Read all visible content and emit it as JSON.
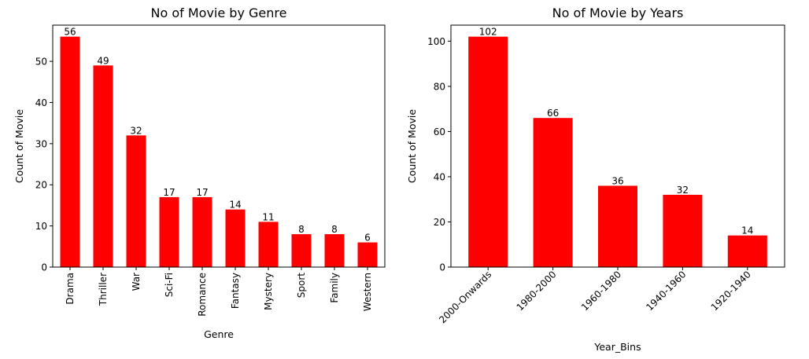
{
  "chart_data": [
    {
      "type": "bar",
      "title": "No of Movie by Genre",
      "xlabel": "Genre",
      "ylabel": "Count of Movie",
      "categories": [
        "Drama",
        "Thriller",
        "War",
        "Sci-Fi",
        "Romance",
        "Fantasy",
        "Mystery",
        "Sport",
        "Family",
        "Western"
      ],
      "values": [
        56,
        49,
        32,
        17,
        17,
        14,
        11,
        8,
        8,
        6
      ],
      "ylim": [
        0,
        58.8
      ],
      "yticks": [
        0,
        10,
        20,
        30,
        40,
        50
      ],
      "xtick_rotation": 90,
      "bar_color": "#ff0000",
      "grid": false
    },
    {
      "type": "bar",
      "title": "No of Movie by Years",
      "xlabel": "Year_Bins",
      "ylabel": "Count of Movie",
      "categories": [
        "2000-Onwards",
        "1980-2000",
        "1960-1980",
        "1940-1960",
        "1920-1940"
      ],
      "values": [
        102,
        66,
        36,
        32,
        14
      ],
      "ylim": [
        0,
        107.1
      ],
      "yticks": [
        0,
        20,
        40,
        60,
        80,
        100
      ],
      "xtick_rotation": 45,
      "bar_color": "#ff0000",
      "grid": false
    }
  ]
}
